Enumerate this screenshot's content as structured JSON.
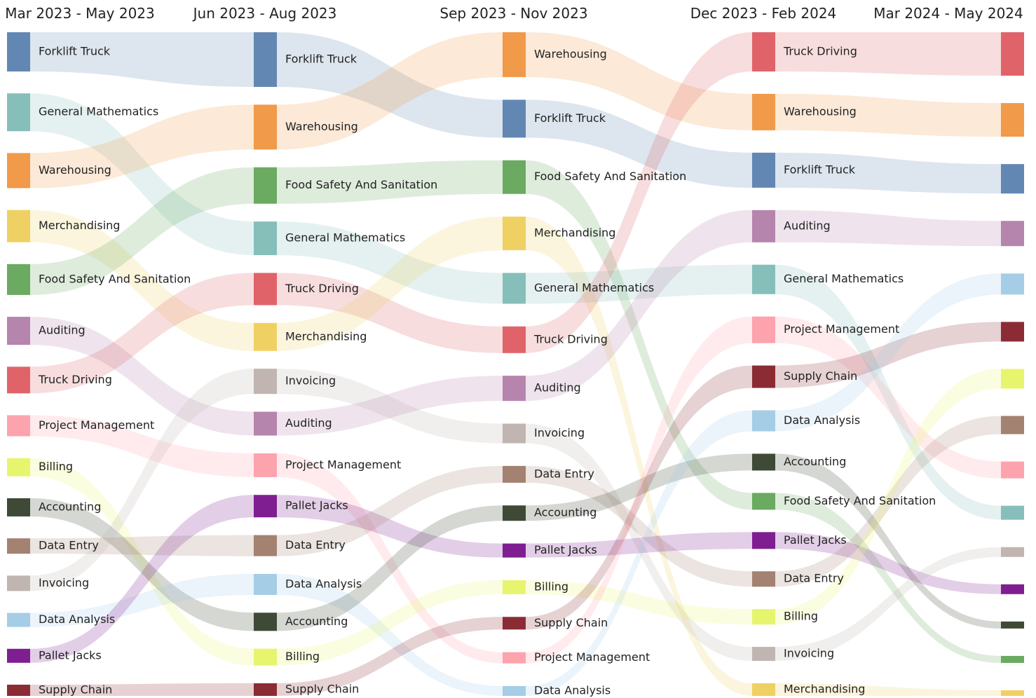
{
  "chart_data": {
    "type": "sankey",
    "periods": [
      "Mar 2023 - May 2023",
      "Jun 2023 - Aug 2023",
      "Sep 2023 - Nov 2023",
      "Dec 2023 - Feb 2024",
      "Mar 2024 - May 2024"
    ],
    "colors": {
      "Forklift Truck": "#6287b3",
      "General Mathematics": "#86bfb9",
      "Warehousing": "#f09a4a",
      "Merchandising": "#efd163",
      "Food Safety And Sanitation": "#6baa61",
      "Auditing": "#b585ad",
      "Truck Driving": "#e0636a",
      "Project Management": "#fda3ae",
      "Billing": "#e7f56e",
      "Accounting": "#3f4a36",
      "Data Entry": "#a38271",
      "Invoicing": "#c0b5b0",
      "Data Analysis": "#a5cde6",
      "Pallet Jacks": "#7f1e91",
      "Supply Chain": "#8b2c35"
    },
    "rankings": [
      [
        "Forklift Truck",
        "General Mathematics",
        "Warehousing",
        "Merchandising",
        "Food Safety And Sanitation",
        "Auditing",
        "Truck Driving",
        "Project Management",
        "Billing",
        "Accounting",
        "Data Entry",
        "Invoicing",
        "Data Analysis",
        "Pallet Jacks",
        "Supply Chain"
      ],
      [
        "Forklift Truck",
        "Warehousing",
        "Food Safety And Sanitation",
        "General Mathematics",
        "Truck Driving",
        "Merchandising",
        "Invoicing",
        "Auditing",
        "Project Management",
        "Pallet Jacks",
        "Data Entry",
        "Data Analysis",
        "Accounting",
        "Billing",
        "Supply Chain"
      ],
      [
        "Warehousing",
        "Forklift Truck",
        "Food Safety And Sanitation",
        "Merchandising",
        "General Mathematics",
        "Truck Driving",
        "Auditing",
        "Invoicing",
        "Data Entry",
        "Accounting",
        "Pallet Jacks",
        "Billing",
        "Supply Chain",
        "Project Management",
        "Data Analysis"
      ],
      [
        "Truck Driving",
        "Warehousing",
        "Forklift Truck",
        "Auditing",
        "General Mathematics",
        "Project Management",
        "Supply Chain",
        "Data Analysis",
        "Accounting",
        "Food Safety And Sanitation",
        "Pallet Jacks",
        "Data Entry",
        "Billing",
        "Invoicing",
        "Merchandising"
      ],
      [
        "Truck Driving",
        "Warehousing",
        "Forklift Truck",
        "Auditing",
        "Data Analysis",
        "Supply Chain",
        "Billing",
        "Data Entry",
        "Project Management",
        "General Mathematics",
        "Invoicing",
        "Pallet Jacks",
        "Accounting",
        "Food Safety And Sanitation",
        "Merchandising"
      ]
    ],
    "sizes": [
      [
        56,
        54,
        50,
        46,
        44,
        40,
        38,
        30,
        26,
        26,
        22,
        22,
        20,
        20,
        16
      ],
      [
        78,
        64,
        52,
        48,
        46,
        40,
        36,
        34,
        34,
        32,
        30,
        30,
        26,
        24,
        18
      ],
      [
        64,
        54,
        48,
        48,
        44,
        38,
        36,
        28,
        24,
        22,
        20,
        20,
        18,
        16,
        14
      ],
      [
        56,
        52,
        50,
        46,
        42,
        38,
        32,
        30,
        24,
        24,
        24,
        22,
        22,
        20,
        18
      ],
      [
        62,
        48,
        42,
        36,
        30,
        28,
        28,
        26,
        24,
        20,
        14,
        14,
        10,
        10,
        8
      ]
    ],
    "show_labels": [
      true,
      true,
      true,
      true,
      false
    ]
  }
}
